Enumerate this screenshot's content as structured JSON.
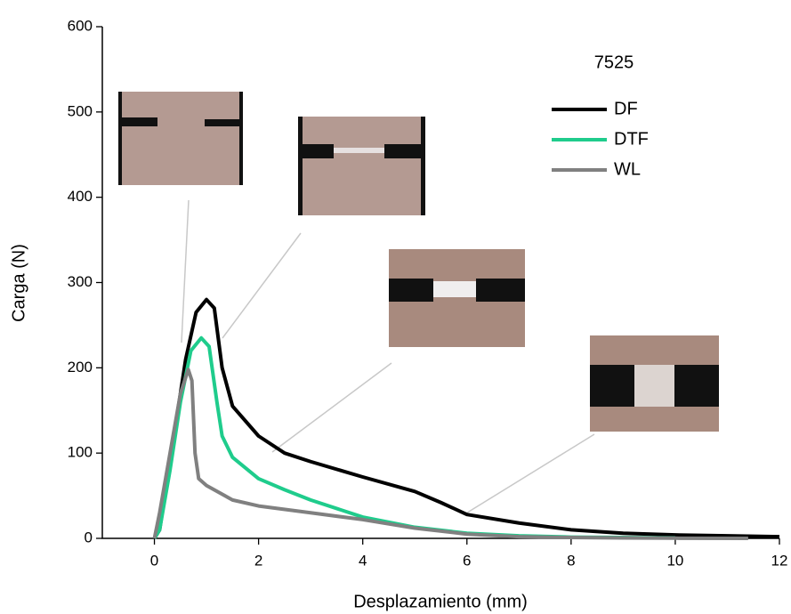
{
  "chart_data": {
    "type": "line",
    "xlabel": "Desplazamiento (mm)",
    "ylabel": "Carga (N)",
    "annotation": "7525",
    "xlim": [
      -1,
      12
    ],
    "xticks": [
      0,
      2,
      4,
      6,
      8,
      10,
      12
    ],
    "ylim": [
      0,
      600
    ],
    "yticks": [
      0,
      100,
      200,
      300,
      400,
      500,
      600
    ],
    "legend": "upper right",
    "series": [
      {
        "name": "DF",
        "color": "#000000",
        "x": [
          0,
          0.1,
          0.2,
          0.4,
          0.6,
          0.8,
          1.0,
          1.15,
          1.3,
          1.5,
          2,
          2.5,
          3,
          4,
          5,
          5.5,
          6,
          7,
          8,
          9,
          10,
          11,
          12
        ],
        "values": [
          0,
          10,
          50,
          130,
          210,
          265,
          280,
          270,
          200,
          155,
          120,
          100,
          90,
          72,
          55,
          42,
          28,
          18,
          10,
          6,
          4,
          3,
          2
        ]
      },
      {
        "name": "DTF",
        "color": "#1fcc8c",
        "x": [
          0,
          0.1,
          0.3,
          0.5,
          0.7,
          0.9,
          1.05,
          1.2,
          1.3,
          1.5,
          2,
          2.5,
          3,
          4,
          5,
          6,
          7,
          8,
          9,
          10
        ],
        "values": [
          0,
          10,
          80,
          160,
          220,
          235,
          225,
          160,
          120,
          95,
          70,
          57,
          45,
          25,
          13,
          6,
          3,
          1.5,
          1,
          0.5
        ]
      },
      {
        "name": "WL",
        "color": "#808080",
        "x": [
          0,
          0.1,
          0.3,
          0.5,
          0.65,
          0.72,
          0.78,
          0.85,
          1,
          1.5,
          2,
          3,
          4,
          5,
          6,
          7,
          8,
          9,
          10,
          11.4
        ],
        "values": [
          0,
          30,
          100,
          170,
          198,
          185,
          100,
          70,
          62,
          45,
          38,
          30,
          22,
          12,
          5,
          2,
          1,
          0.5,
          0.2,
          0
        ]
      }
    ]
  }
}
